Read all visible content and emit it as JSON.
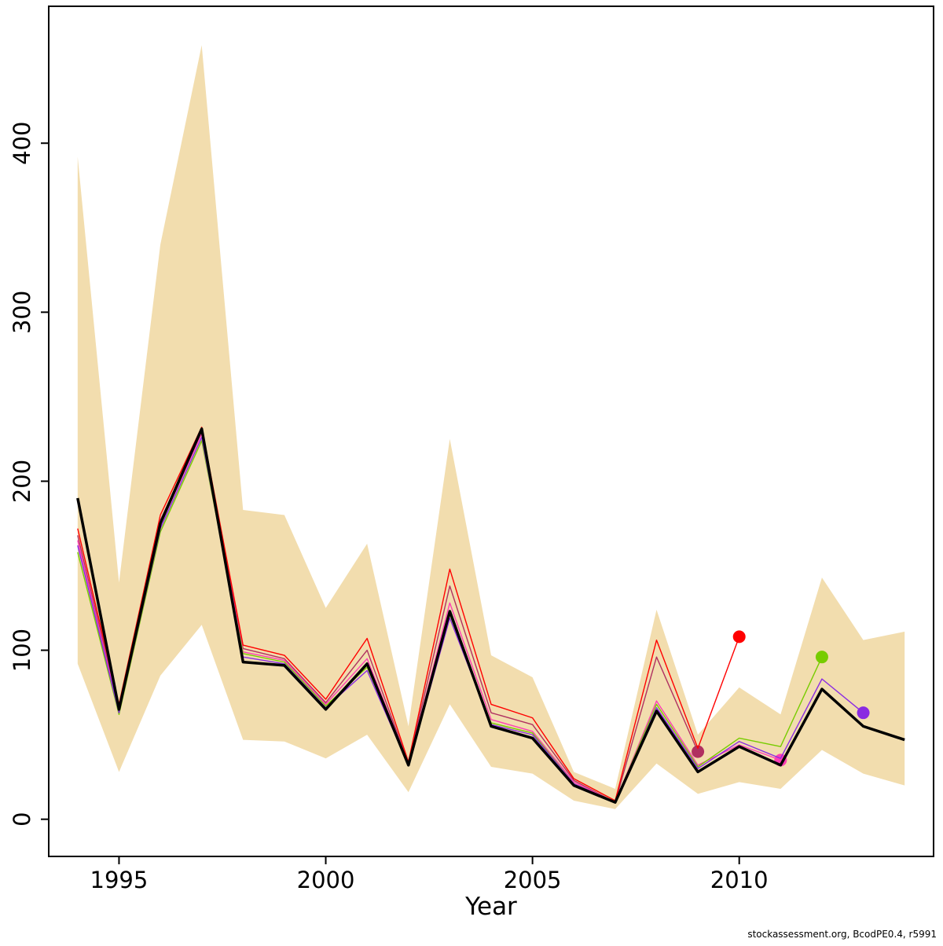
{
  "watermark": "stockassessment.org, BcodPE0.4, r5991",
  "chart_data": {
    "type": "line",
    "title": "",
    "xlabel": "Year",
    "ylabel": "",
    "legend": "none",
    "grid": false,
    "xlim": [
      1993.3,
      2014.7
    ],
    "ylim": [
      -22,
      481
    ],
    "x_ticks": [
      1995,
      2000,
      2005,
      2010
    ],
    "y_ticks": [
      0,
      100,
      200,
      300,
      400
    ],
    "years": [
      1994,
      1995,
      1996,
      1997,
      1998,
      1999,
      2000,
      2001,
      2002,
      2003,
      2004,
      2005,
      2006,
      2007,
      2008,
      2009,
      2010,
      2011,
      2012,
      2013,
      2014
    ],
    "band": {
      "label": "confidence-interval",
      "color": "#f2ddae",
      "upper": [
        392,
        140,
        340,
        458,
        183,
        180,
        125,
        163,
        55,
        225,
        97,
        84,
        28,
        18,
        124,
        50,
        78,
        62,
        143,
        106,
        111
      ],
      "lower": [
        92,
        28,
        85,
        115,
        47,
        46,
        36,
        50,
        16,
        68,
        31,
        27,
        11,
        6,
        33,
        15,
        22,
        18,
        41,
        27,
        20
      ]
    },
    "series": [
      {
        "name": "retro-2009",
        "color": "#b03060",
        "width": 1.4,
        "end_dot": true,
        "values": [
          168,
          66,
          177,
          229,
          101,
          95,
          69,
          100,
          33,
          138,
          63,
          56,
          23,
          10,
          96,
          40
        ]
      },
      {
        "name": "retro-2010",
        "color": "#ff0000",
        "width": 1.4,
        "end_dot": true,
        "values": [
          172,
          68,
          180,
          232,
          103,
          97,
          71,
          107,
          34,
          148,
          68,
          60,
          24,
          11,
          106,
          42,
          108
        ]
      },
      {
        "name": "retro-2011",
        "color": "#ff3eb5",
        "width": 1.4,
        "end_dot": true,
        "values": [
          165,
          64,
          174,
          228,
          99,
          94,
          68,
          95,
          33,
          128,
          59,
          52,
          22,
          10,
          70,
          32,
          44,
          35
        ]
      },
      {
        "name": "retro-2012",
        "color": "#77cc00",
        "width": 1.4,
        "end_dot": true,
        "values": [
          158,
          62,
          170,
          224,
          98,
          93,
          67,
          90,
          32,
          121,
          57,
          51,
          21,
          10,
          68,
          31,
          48,
          43,
          96
        ]
      },
      {
        "name": "retro-2013",
        "color": "#8a2be2",
        "width": 1.4,
        "end_dot": true,
        "values": [
          162,
          63,
          172,
          226,
          96,
          92,
          66,
          88,
          32,
          119,
          56,
          50,
          21,
          10,
          66,
          30,
          46,
          36,
          83,
          63
        ]
      },
      {
        "name": "base-run",
        "color": "#000000",
        "width": 3.5,
        "end_dot": false,
        "values": [
          190,
          65,
          175,
          231,
          93,
          91,
          65,
          92,
          32,
          123,
          55,
          48,
          20,
          10,
          64,
          28,
          43,
          32,
          77,
          55,
          47
        ]
      }
    ]
  }
}
